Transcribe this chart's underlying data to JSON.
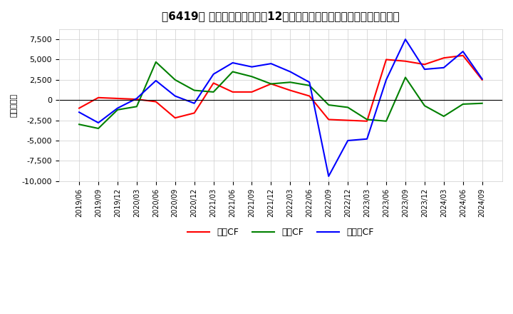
{
  "title": "［6419］ キャッシュフローの12か月移動合計の対前年同期増減額の推移",
  "ylabel": "（百万円）",
  "ylim": [
    -10000,
    8750
  ],
  "yticks": [
    -10000,
    -7500,
    -5000,
    -2500,
    0,
    2500,
    5000,
    7500
  ],
  "legend": [
    "営業CF",
    "投資CF",
    "フリーCF"
  ],
  "legend_colors": [
    "#ff0000",
    "#008000",
    "#0000ff"
  ],
  "x_labels": [
    "2019/06",
    "2019/09",
    "2019/12",
    "2020/03",
    "2020/06",
    "2020/09",
    "2020/12",
    "2021/03",
    "2021/06",
    "2021/09",
    "2021/12",
    "2022/03",
    "2022/06",
    "2022/09",
    "2022/12",
    "2023/03",
    "2023/06",
    "2023/09",
    "2023/12",
    "2024/03",
    "2024/06",
    "2024/09"
  ],
  "営業CF": [
    -1000,
    300,
    200,
    100,
    -200,
    -2200,
    -1600,
    2100,
    1000,
    1000,
    2000,
    1200,
    500,
    -2400,
    -2500,
    -2600,
    5000,
    4800,
    4400,
    5200,
    5500,
    2500
  ],
  "投資CF": [
    -3000,
    -3500,
    -1200,
    -800,
    4700,
    2500,
    1200,
    1000,
    3500,
    2900,
    2000,
    2200,
    1800,
    -600,
    -900,
    -2400,
    -2600,
    2800,
    -700,
    -2000,
    -500,
    -400
  ],
  "フリーCF": [
    -1500,
    -2800,
    -1000,
    200,
    2400,
    500,
    -400,
    3200,
    4600,
    4100,
    4500,
    3500,
    2200,
    -9400,
    -5000,
    -4800,
    2500,
    7500,
    3800,
    4000,
    6000,
    2600
  ]
}
